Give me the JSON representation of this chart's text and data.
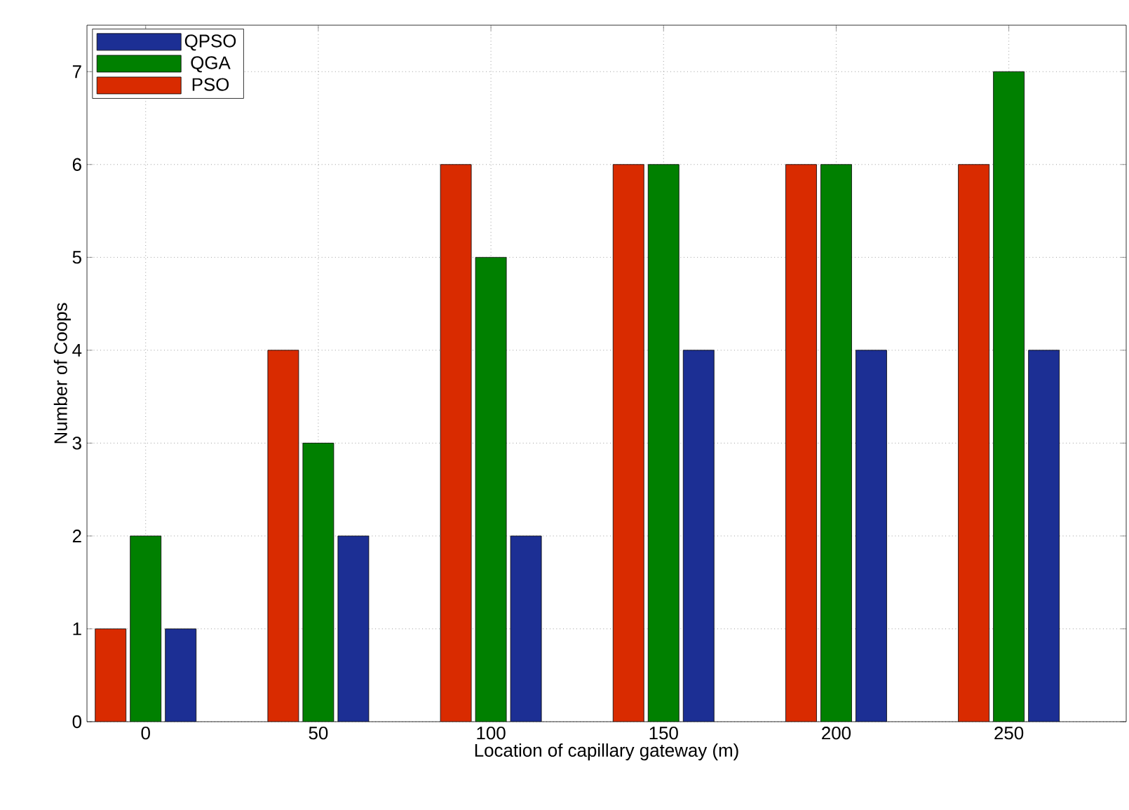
{
  "chart_data": {
    "type": "bar",
    "xlabel": "Location of capillary gateway (m)",
    "ylabel": "Number of Coops",
    "categories": [
      "0",
      "50",
      "100",
      "150",
      "200",
      "250"
    ],
    "series": [
      {
        "name": "PSO",
        "color": "#d92b00",
        "values": [
          1,
          4,
          6,
          6,
          6,
          6
        ]
      },
      {
        "name": "QGA",
        "color": "#008000",
        "values": [
          2,
          3,
          5,
          6,
          6,
          7
        ]
      },
      {
        "name": "QPSO",
        "color": "#1c2f94",
        "values": [
          1,
          2,
          2,
          4,
          4,
          4
        ]
      }
    ],
    "ylim": [
      0,
      7.5
    ],
    "yticks": [
      0,
      1,
      2,
      3,
      4,
      5,
      6,
      7
    ],
    "grid": true,
    "legend": "top left"
  }
}
